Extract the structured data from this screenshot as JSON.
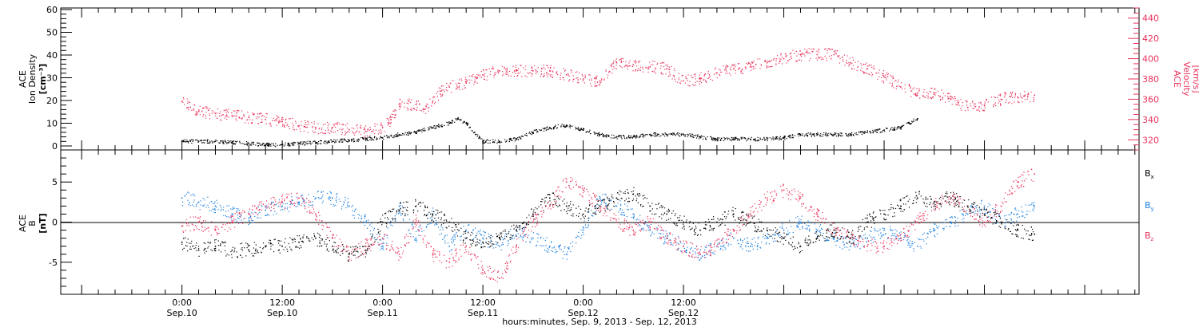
{
  "colors": {
    "black": "#000000",
    "red": "#e8325a",
    "blue": "#1a7fe0"
  },
  "chart_data": [
    {
      "type": "scatter",
      "panel": "plasma",
      "ylabel_left": [
        "ACE",
        "Ion Density",
        "[cm⁻³]"
      ],
      "ylabel_right": [
        "ACE",
        "Velocity",
        "[km/s]"
      ],
      "ylim_left": [
        0,
        60
      ],
      "ylim_right": [
        310,
        450
      ],
      "left_ticks": [
        "0",
        "10",
        "20",
        "30",
        "40",
        "50",
        "60"
      ],
      "right_ticks": [
        "320",
        "340",
        "360",
        "380",
        "400",
        "420",
        "440"
      ],
      "grid": false,
      "series": [
        {
          "axis": "left",
          "color": "#000000",
          "points": [
            [
              0,
              2
            ],
            [
              2,
              2
            ],
            [
              4,
              2
            ],
            [
              6,
              1.5
            ],
            [
              8,
              1
            ],
            [
              10,
              0.5
            ],
            [
              12,
              0.5
            ],
            [
              14,
              1
            ],
            [
              16,
              1.5
            ],
            [
              18,
              2
            ],
            [
              20,
              2.5
            ],
            [
              22,
              3
            ],
            [
              24,
              3.5
            ],
            [
              26,
              5
            ],
            [
              28,
              6
            ],
            [
              30,
              8
            ],
            [
              32,
              10
            ],
            [
              33,
              12
            ],
            [
              34,
              10
            ],
            [
              35,
              6
            ],
            [
              36,
              2
            ],
            [
              38,
              2
            ],
            [
              40,
              3
            ],
            [
              42,
              6
            ],
            [
              44,
              8
            ],
            [
              46,
              9
            ],
            [
              48,
              7
            ],
            [
              50,
              5
            ],
            [
              52,
              4
            ],
            [
              54,
              4
            ],
            [
              56,
              5
            ],
            [
              58,
              5
            ],
            [
              60,
              5
            ],
            [
              62,
              4
            ],
            [
              64,
              3
            ],
            [
              66,
              3
            ],
            [
              68,
              3
            ],
            [
              70,
              3
            ],
            [
              72,
              3.5
            ],
            [
              74,
              5
            ],
            [
              76,
              5
            ],
            [
              78,
              5
            ],
            [
              80,
              5
            ],
            [
              82,
              6
            ],
            [
              84,
              7
            ],
            [
              86,
              8
            ],
            [
              87,
              10
            ],
            [
              88,
              12
            ]
          ]
        },
        {
          "axis": "right",
          "color": "#e8325a",
          "points": [
            [
              0,
              358
            ],
            [
              1,
              352
            ],
            [
              2,
              348
            ],
            [
              4,
              346
            ],
            [
              6,
              344
            ],
            [
              8,
              342
            ],
            [
              10,
              340
            ],
            [
              12,
              338
            ],
            [
              14,
              334
            ],
            [
              16,
              332
            ],
            [
              18,
              332
            ],
            [
              20,
              330
            ],
            [
              22,
              328
            ],
            [
              24,
              332
            ],
            [
              25,
              340
            ],
            [
              26,
              355
            ],
            [
              28,
              355
            ],
            [
              29,
              350
            ],
            [
              30,
              358
            ],
            [
              31,
              368
            ],
            [
              32,
              372
            ],
            [
              34,
              376
            ],
            [
              36,
              384
            ],
            [
              38,
              388
            ],
            [
              40,
              388
            ],
            [
              42,
              388
            ],
            [
              44,
              388
            ],
            [
              46,
              384
            ],
            [
              48,
              380
            ],
            [
              50,
              378
            ],
            [
              52,
              396
            ],
            [
              54,
              394
            ],
            [
              56,
              392
            ],
            [
              58,
              390
            ],
            [
              60,
              378
            ],
            [
              62,
              380
            ],
            [
              64,
              386
            ],
            [
              66,
              390
            ],
            [
              68,
              392
            ],
            [
              70,
              396
            ],
            [
              72,
              400
            ],
            [
              74,
              404
            ],
            [
              76,
              404
            ],
            [
              78,
              404
            ],
            [
              80,
              396
            ],
            [
              82,
              390
            ],
            [
              84,
              382
            ],
            [
              86,
              372
            ],
            [
              88,
              366
            ],
            [
              90,
              366
            ],
            [
              92,
              360
            ],
            [
              94,
              352
            ],
            [
              96,
              354
            ],
            [
              98,
              360
            ],
            [
              100,
              362
            ],
            [
              102,
              364
            ]
          ]
        }
      ]
    },
    {
      "type": "scatter",
      "panel": "magnetic",
      "ylabel_left": [
        "ACE",
        "B",
        "[nT]"
      ],
      "ylim": [
        -9,
        9
      ],
      "left_ticks": [
        "-5",
        "0",
        "5"
      ],
      "grid": false,
      "legend": [
        "Bx",
        "By",
        "Bz"
      ],
      "legend_position": "right",
      "series": [
        {
          "name": "Bx",
          "color": "#000000",
          "points": [
            [
              0,
              -2.5
            ],
            [
              2,
              -3.5
            ],
            [
              4,
              -3
            ],
            [
              6,
              -3.5
            ],
            [
              8,
              -3.5
            ],
            [
              10,
              -3
            ],
            [
              12,
              -3
            ],
            [
              14,
              -2.5
            ],
            [
              16,
              -2
            ],
            [
              18,
              -3
            ],
            [
              20,
              -4
            ],
            [
              22,
              -3.5
            ],
            [
              24,
              0
            ],
            [
              26,
              1.5
            ],
            [
              28,
              2
            ],
            [
              30,
              1
            ],
            [
              32,
              0
            ],
            [
              34,
              -2
            ],
            [
              36,
              -2.5
            ],
            [
              38,
              -2
            ],
            [
              40,
              -1
            ],
            [
              42,
              1
            ],
            [
              44,
              3
            ],
            [
              46,
              2
            ],
            [
              48,
              1
            ],
            [
              50,
              2
            ],
            [
              52,
              3
            ],
            [
              54,
              3.5
            ],
            [
              56,
              2
            ],
            [
              58,
              1
            ],
            [
              60,
              0
            ],
            [
              62,
              -1
            ],
            [
              64,
              0
            ],
            [
              66,
              1
            ],
            [
              68,
              0
            ],
            [
              70,
              -1
            ],
            [
              72,
              -2
            ],
            [
              74,
              -3
            ],
            [
              76,
              -2
            ],
            [
              78,
              -1
            ],
            [
              80,
              -2
            ],
            [
              82,
              0
            ],
            [
              84,
              1
            ],
            [
              86,
              2
            ],
            [
              88,
              3
            ],
            [
              90,
              2.5
            ],
            [
              92,
              3
            ],
            [
              94,
              2
            ],
            [
              96,
              1
            ],
            [
              98,
              0
            ],
            [
              100,
              -1
            ],
            [
              102,
              -1.5
            ]
          ]
        },
        {
          "name": "By",
          "color": "#1a7fe0",
          "points": [
            [
              0,
              3
            ],
            [
              2,
              2.5
            ],
            [
              4,
              2
            ],
            [
              6,
              1
            ],
            [
              8,
              0.5
            ],
            [
              10,
              1.5
            ],
            [
              12,
              2
            ],
            [
              14,
              2.5
            ],
            [
              16,
              3
            ],
            [
              18,
              3
            ],
            [
              20,
              2
            ],
            [
              22,
              0
            ],
            [
              24,
              -3
            ],
            [
              26,
              2
            ],
            [
              28,
              -2
            ],
            [
              30,
              1
            ],
            [
              32,
              -3
            ],
            [
              34,
              -1
            ],
            [
              36,
              -2
            ],
            [
              38,
              -3
            ],
            [
              40,
              -1
            ],
            [
              42,
              -2
            ],
            [
              44,
              -3
            ],
            [
              46,
              -4
            ],
            [
              48,
              -1
            ],
            [
              50,
              3
            ],
            [
              52,
              2
            ],
            [
              54,
              1
            ],
            [
              56,
              -1
            ],
            [
              58,
              -2
            ],
            [
              60,
              -3
            ],
            [
              62,
              -4
            ],
            [
              64,
              -3
            ],
            [
              66,
              -2
            ],
            [
              68,
              -3
            ],
            [
              70,
              -2
            ],
            [
              72,
              -1
            ],
            [
              74,
              0
            ],
            [
              76,
              -1
            ],
            [
              78,
              -2
            ],
            [
              80,
              -3
            ],
            [
              82,
              -2
            ],
            [
              84,
              -1
            ],
            [
              86,
              -2
            ],
            [
              88,
              -3
            ],
            [
              90,
              -1
            ],
            [
              92,
              0
            ],
            [
              94,
              1
            ],
            [
              96,
              2
            ],
            [
              98,
              0
            ],
            [
              100,
              1
            ],
            [
              102,
              2
            ]
          ]
        },
        {
          "name": "Bz",
          "color": "#e8325a",
          "points": [
            [
              0,
              -0.5
            ],
            [
              2,
              0
            ],
            [
              4,
              -1
            ],
            [
              6,
              0
            ],
            [
              8,
              1
            ],
            [
              10,
              2
            ],
            [
              12,
              2.5
            ],
            [
              14,
              3
            ],
            [
              16,
              1
            ],
            [
              18,
              -2
            ],
            [
              20,
              -4
            ],
            [
              22,
              -3
            ],
            [
              24,
              -2
            ],
            [
              26,
              -4
            ],
            [
              28,
              0
            ],
            [
              30,
              -4
            ],
            [
              32,
              -5
            ],
            [
              34,
              -3
            ],
            [
              36,
              -6
            ],
            [
              38,
              -7
            ],
            [
              40,
              -3
            ],
            [
              42,
              0
            ],
            [
              44,
              2
            ],
            [
              46,
              5
            ],
            [
              48,
              4
            ],
            [
              50,
              2
            ],
            [
              52,
              0
            ],
            [
              54,
              -1
            ],
            [
              56,
              0
            ],
            [
              58,
              -2
            ],
            [
              60,
              -3
            ],
            [
              62,
              -4
            ],
            [
              64,
              -3
            ],
            [
              66,
              -1
            ],
            [
              68,
              1
            ],
            [
              70,
              3
            ],
            [
              72,
              4
            ],
            [
              74,
              3
            ],
            [
              76,
              1
            ],
            [
              78,
              -1
            ],
            [
              80,
              -2
            ],
            [
              82,
              -3
            ],
            [
              84,
              -3
            ],
            [
              86,
              -2
            ],
            [
              88,
              0
            ],
            [
              90,
              2
            ],
            [
              92,
              3
            ],
            [
              94,
              2
            ],
            [
              96,
              0
            ],
            [
              98,
              2
            ],
            [
              100,
              5
            ],
            [
              102,
              6
            ]
          ]
        }
      ]
    }
  ],
  "x_axis": {
    "xlim_hours": [
      -14.5,
      114.5
    ],
    "major_ticks": [
      {
        "hours": 0,
        "time": "0:00",
        "date": "Sep.10"
      },
      {
        "hours": 12,
        "time": "12:00",
        "date": "Sep.10"
      },
      {
        "hours": 24,
        "time": "0:00",
        "date": "Sep.11"
      },
      {
        "hours": 36,
        "time": "12:00",
        "date": "Sep.11"
      },
      {
        "hours": 48,
        "time": "0:00",
        "date": "Sep.12"
      },
      {
        "hours": 60,
        "time": "12:00",
        "date": "Sep.12"
      }
    ],
    "label": "hours:minutes, Sep.  9, 2013 - Sep. 12, 2013"
  }
}
